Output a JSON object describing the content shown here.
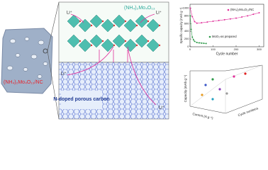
{
  "material_label": "(NH₄)₂Mo₄O₁₃",
  "composite_label": "(NH₄)₂Mo₄O₁₃/NC",
  "carbon_label": "N-doped porous carbon",
  "li_labels": [
    "Li⁺",
    "Li⁺",
    "Li⁺",
    "Li⁺"
  ],
  "chart_data": {
    "type": "line",
    "x_label": "Cycle number",
    "y_label": "Specific capacity (mAh g⁻¹)",
    "xlim": [
      0,
      320
    ],
    "ylim": [
      0,
      1100
    ],
    "xticks": [
      0,
      100,
      200,
      300
    ],
    "yticks": [
      0,
      200,
      400,
      600,
      800,
      1000
    ],
    "series": [
      {
        "name": "(NH₄)₂Mo₄O₁₃/NC",
        "color": "#e0309a",
        "x": [
          1,
          10,
          20,
          30,
          50,
          75,
          100,
          125,
          150,
          175,
          200,
          225,
          250,
          275,
          300
        ],
        "values": [
          1000,
          780,
          650,
          610,
          620,
          640,
          660,
          680,
          700,
          720,
          740,
          770,
          800,
          840,
          880
        ]
      },
      {
        "name": "MoO₃-as prepared",
        "color": "#2e9a4a",
        "x": [
          1,
          5,
          10,
          15,
          20,
          30,
          40,
          50,
          60,
          70
        ],
        "values": [
          800,
          450,
          250,
          180,
          140,
          110,
          100,
          95,
          90,
          85
        ]
      }
    ]
  },
  "chart3d": {
    "z_label": "Capacity (mAh g⁻¹)",
    "x_label": "Current (A g⁻¹)",
    "y_label": "Cycle numbers"
  }
}
